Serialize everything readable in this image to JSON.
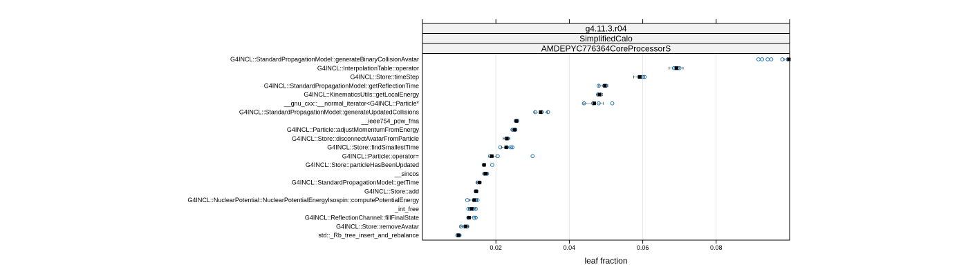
{
  "chart_data": {
    "type": "scatter",
    "strips": [
      "g4.11.3.r04",
      "SimplifiedCalo",
      "AMDEPYC776364CoreProcessorS"
    ],
    "xlabel": "leaf fraction",
    "xlim": [
      0.0,
      0.1
    ],
    "x_ticks": [
      {
        "value": 0.02,
        "label": "0.02"
      },
      {
        "value": 0.04,
        "label": "0.04"
      },
      {
        "value": 0.06,
        "label": "0.06"
      },
      {
        "value": 0.08,
        "label": "0.08"
      }
    ],
    "grid": true,
    "colors": {
      "points": "#1f77b4",
      "summary": "#000000",
      "strip_bg": "#f2f2f2",
      "grid": "#e6e6e6"
    },
    "categories": [
      {
        "label": "G4INCL::StandardPropagationModel::generateBinaryCollisionAvatar",
        "median": 0.0998,
        "low": 0.0985,
        "high": 0.0999,
        "runs": [
          0.0915,
          0.0925,
          0.094,
          0.095,
          0.098,
          0.0995
        ]
      },
      {
        "label": "G4INCL::InterpolationTable::operator",
        "median": 0.0692,
        "low": 0.0672,
        "high": 0.071,
        "runs": [
          0.0685,
          0.069,
          0.0695,
          0.07
        ]
      },
      {
        "label": "G4INCL::Store::timeStep",
        "median": 0.0592,
        "low": 0.0575,
        "high": 0.0605,
        "runs": [
          0.059,
          0.06,
          0.0605
        ]
      },
      {
        "label": "G4INCL::StandardPropagationModel::getReflectionTime",
        "median": 0.0497,
        "low": 0.048,
        "high": 0.0505,
        "runs": [
          0.048,
          0.0495,
          0.05
        ]
      },
      {
        "label": "G4INCL::KinematicsUtils::getLocalEnergy",
        "median": 0.0482,
        "low": 0.0475,
        "high": 0.049,
        "runs": [
          0.0478,
          0.0485
        ]
      },
      {
        "label": "__gnu_cxx::__normal_iterator<G4INCL::Particle*",
        "median": 0.0468,
        "low": 0.044,
        "high": 0.0492,
        "runs": [
          0.044,
          0.0465,
          0.048,
          0.0517
        ]
      },
      {
        "label": "G4INCL::StandardPropagationModel::generateUpdatedCollisions",
        "median": 0.0322,
        "low": 0.0305,
        "high": 0.034,
        "runs": [
          0.0307,
          0.0325,
          0.0342
        ]
      },
      {
        "label": "__ieee754_pow_fma",
        "median": 0.0256,
        "low": 0.025,
        "high": 0.0262,
        "runs": [
          0.0255,
          0.0258
        ]
      },
      {
        "label": "G4INCL::Particle::adjustMomentumFromEnergy",
        "median": 0.0251,
        "low": 0.0243,
        "high": 0.0257,
        "runs": [
          0.0245,
          0.025,
          0.0253
        ]
      },
      {
        "label": "G4INCL::Store::disconnectAvatarFromParticle",
        "median": 0.023,
        "low": 0.022,
        "high": 0.0238,
        "runs": [
          0.0228,
          0.0232
        ]
      },
      {
        "label": "G4INCL::Store::findSmallestTime",
        "median": 0.0228,
        "low": 0.0215,
        "high": 0.0245,
        "runs": [
          0.0212,
          0.023,
          0.024,
          0.0245
        ]
      },
      {
        "label": "G4INCL::Particle::operator=",
        "median": 0.0189,
        "low": 0.018,
        "high": 0.02,
        "runs": [
          0.0185,
          0.0205,
          0.03
        ]
      },
      {
        "label": "G4INCL::Store::particleHasBeenUpdated",
        "median": 0.0168,
        "low": 0.0164,
        "high": 0.0172,
        "runs": [
          0.0167,
          0.019
        ]
      },
      {
        "label": "__sincos",
        "median": 0.0172,
        "low": 0.0166,
        "high": 0.0178,
        "runs": [
          0.0168,
          0.0172,
          0.0176
        ]
      },
      {
        "label": "G4INCL::StandardPropagationModel::getTime",
        "median": 0.0155,
        "low": 0.0148,
        "high": 0.016,
        "runs": [
          0.015,
          0.0156
        ]
      },
      {
        "label": "G4INCL::Store::add",
        "median": 0.0146,
        "low": 0.0142,
        "high": 0.015,
        "runs": [
          0.0145,
          0.0148
        ]
      },
      {
        "label": "G4INCL::NuclearPotential::NuclearPotentialEnergyIsospin::computePotentialEnergy",
        "median": 0.0141,
        "low": 0.0128,
        "high": 0.015,
        "runs": [
          0.0122,
          0.014,
          0.0145,
          0.015
        ]
      },
      {
        "label": "_int_free",
        "median": 0.0134,
        "low": 0.0125,
        "high": 0.0145,
        "runs": [
          0.0125,
          0.013,
          0.0138,
          0.0145
        ]
      },
      {
        "label": "G4INCL::ReflectionChannel::fillFinalState",
        "median": 0.0127,
        "low": 0.0122,
        "high": 0.0145,
        "runs": [
          0.0125,
          0.014,
          0.0145
        ]
      },
      {
        "label": "G4INCL::Store::removeAvatar",
        "median": 0.0118,
        "low": 0.0105,
        "high": 0.0125,
        "runs": [
          0.0105,
          0.0115,
          0.0122
        ]
      },
      {
        "label": "std::_Rb_tree_insert_and_rebalance",
        "median": 0.0098,
        "low": 0.0094,
        "high": 0.0104,
        "runs": [
          0.0095,
          0.0098,
          0.0101
        ]
      }
    ]
  }
}
